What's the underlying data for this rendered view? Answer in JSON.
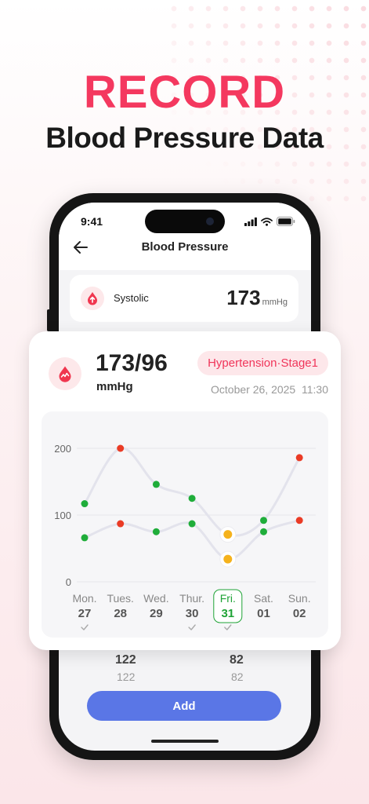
{
  "promo": {
    "headline": "RECORD",
    "subheadline": "Blood Pressure Data",
    "colors": {
      "accent": "#f4385f",
      "button": "#5a76e6",
      "systolic_dot": "#ea3b25",
      "diastolic_dot": "#1fad3a",
      "selected_dot": "#f5b21c",
      "selected_day": "#1fa336"
    }
  },
  "status_bar": {
    "time": "9:41",
    "icons": [
      "signal-icon",
      "wifi-icon",
      "battery-icon"
    ]
  },
  "screen": {
    "title": "Blood Pressure",
    "back_icon": "back-arrow-icon",
    "systolic": {
      "label": "Systolic",
      "value": "173",
      "unit": "mmHg",
      "icon": "arrow-up-icon"
    },
    "partial_values": {
      "systolic": "122",
      "diastolic": "82"
    },
    "add_button": "Add"
  },
  "record_card": {
    "reading": "173/96",
    "unit": "mmHg",
    "status": "Hypertension·Stage1",
    "date": "October 26, 2025",
    "time": "11:30",
    "icon": "heart-pulse-icon"
  },
  "chart_data": {
    "type": "line",
    "y_ticks": [
      "200",
      "100",
      "0"
    ],
    "ylim": [
      0,
      200
    ],
    "categories": [
      "Mon.",
      "Tues.",
      "Wed.",
      "Thur.",
      "Fri.",
      "Sat.",
      "Sun."
    ],
    "dates": [
      "27",
      "28",
      "29",
      "30",
      "31",
      "01",
      "02"
    ],
    "checked": [
      true,
      false,
      false,
      true,
      true,
      false,
      false
    ],
    "selected_index": 4,
    "series": [
      {
        "values": [
          117,
          200,
          146,
          125,
          71,
          92,
          186
        ]
      },
      {
        "values": [
          66,
          87,
          75,
          87,
          34,
          75,
          92
        ]
      }
    ],
    "point_colors": [
      [
        "#1fad3a",
        "#ea3b25",
        "#1fad3a",
        "#1fad3a",
        "#f5b21c",
        "#1fad3a",
        "#ea3b25"
      ],
      [
        "#1fad3a",
        "#ea3b25",
        "#1fad3a",
        "#1fad3a",
        "#f5b21c",
        "#1fad3a",
        "#ea3b25"
      ]
    ],
    "grid": true,
    "legend": "none"
  }
}
